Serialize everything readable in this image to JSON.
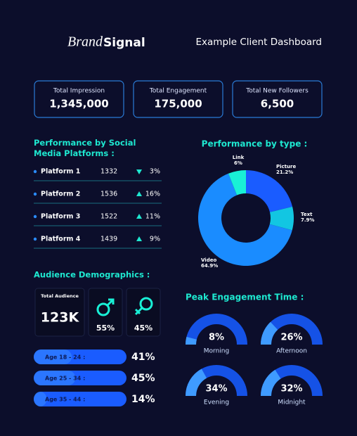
{
  "header": {
    "brand": "Brand",
    "signal": "Signal",
    "subtitle": "Example Client Dashboard"
  },
  "kpis": [
    {
      "label": "Total Impression",
      "value": "1,345,000"
    },
    {
      "label": "Total Engagement",
      "value": "175,000"
    },
    {
      "label": "Total New Followers",
      "value": "6,500"
    }
  ],
  "platforms": {
    "title": "Performance by Social Media Platforms :",
    "rows": [
      {
        "name": "Platform 1",
        "value": 1332,
        "trend": "down",
        "change": "3%"
      },
      {
        "name": "Platform 2",
        "value": 1536,
        "trend": "up",
        "change": "16%"
      },
      {
        "name": "Platform 3",
        "value": 1522,
        "trend": "up",
        "change": "11%"
      },
      {
        "name": "Platform 4",
        "value": 1439,
        "trend": "up",
        "change": "9%"
      }
    ]
  },
  "demographics": {
    "title": "Audience Demographics :",
    "total_label": "Total Audience",
    "total_value": "123K",
    "male": "55%",
    "female": "45%"
  },
  "chart_data": [
    {
      "type": "pie",
      "title": "Performance by type :",
      "categories": [
        "Picture",
        "Text",
        "Video",
        "Link"
      ],
      "values": [
        21.2,
        7.9,
        64.9,
        6
      ],
      "value_labels": [
        "21.2%",
        "7.9%",
        "64.9%",
        "6%"
      ],
      "colors": [
        "#1a5cff",
        "#12c6e2",
        "#1a8cff",
        "#19f0d6"
      ]
    },
    {
      "type": "bar",
      "orientation": "horizontal",
      "categories": [
        "Age 18 - 24 :",
        "Age 25 - 34 :",
        "Age 35 - 44 :"
      ],
      "values": [
        41,
        45,
        14
      ],
      "value_labels": [
        "41%",
        "45%",
        "14%"
      ],
      "color": "#1a5cff"
    },
    {
      "type": "gauge",
      "title": "Peak Engagement Time :",
      "categories": [
        "Morning",
        "Afternoon",
        "Evening",
        "Midnight"
      ],
      "values": [
        8,
        26,
        34,
        32
      ],
      "value_labels": [
        "8%",
        "26%",
        "34%",
        "32%"
      ],
      "color": "#1552e6"
    }
  ]
}
